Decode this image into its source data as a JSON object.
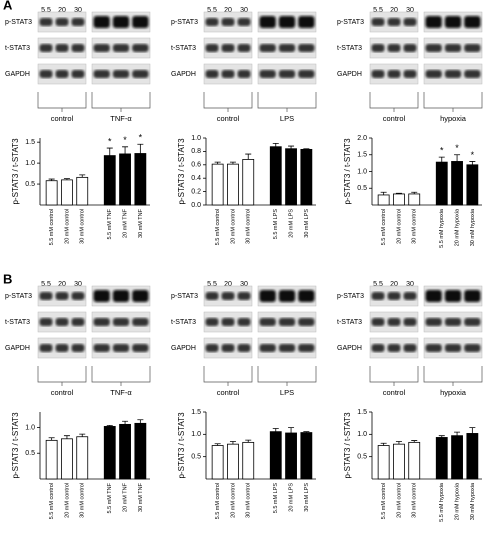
{
  "panel_labels": [
    "A",
    "B"
  ],
  "blots": [
    {
      "lanes": [
        "5.5",
        "20",
        "30"
      ],
      "rows": [
        "p-STAT3",
        "t-STAT3",
        "GAPDH"
      ],
      "groups": [
        "control",
        "TNF-α"
      ]
    },
    {
      "lanes": [
        "5.5",
        "20",
        "30"
      ],
      "rows": [
        "p-STAT3",
        "t-STAT3",
        "GAPDH"
      ],
      "groups": [
        "control",
        "LPS"
      ]
    },
    {
      "lanes": [
        "5.5",
        "20",
        "30"
      ],
      "rows": [
        "p-STAT3",
        "t-STAT3",
        "GAPDH"
      ],
      "groups": [
        "control",
        "hypoxia"
      ]
    },
    {
      "lanes": [
        "5.5",
        "20",
        "30"
      ],
      "rows": [
        "p-STAT3",
        "t-STAT3",
        "GAPDH"
      ],
      "groups": [
        "control",
        "TNF-α"
      ]
    },
    {
      "lanes": [
        "5.5",
        "20",
        "30"
      ],
      "rows": [
        "p-STAT3",
        "t-STAT3",
        "GAPDH"
      ],
      "groups": [
        "control",
        "LPS"
      ]
    },
    {
      "lanes": [
        "5.5",
        "20",
        "30"
      ],
      "rows": [
        "p-STAT3",
        "t-STAT3",
        "GAPDH"
      ],
      "groups": [
        "control",
        "hypoxia"
      ]
    }
  ],
  "chart_data": [
    {
      "type": "bar",
      "ylabel": "p-STAT3 / t-STAT3",
      "categories": [
        "5.5 mM control",
        "20 mM control",
        "30 mM control",
        "5.5 mM TNF",
        "20 mM TNF",
        "30 mM TNF"
      ],
      "values": [
        0.58,
        0.6,
        0.66,
        1.18,
        1.22,
        1.23
      ],
      "errors": [
        0.04,
        0.03,
        0.06,
        0.18,
        0.17,
        0.22
      ],
      "colors": [
        "#ffffff",
        "#ffffff",
        "#ffffff",
        "#000000",
        "#000000",
        "#000000"
      ],
      "significance": [
        null,
        null,
        null,
        "*",
        "*",
        "*"
      ],
      "ylim": [
        0,
        1.6
      ],
      "yticks": [
        0.5,
        {
          "value": 1,
          "label": "1.0"
        },
        1.5
      ]
    },
    {
      "type": "bar",
      "ylabel": "p-STAT3 / t-STAT3",
      "categories": [
        "5.5 mM control",
        "20 mM control",
        "30 mM control",
        "5.5 mM LPS",
        "20 mM LPS",
        "30 mM LPS"
      ],
      "values": [
        0.61,
        0.61,
        0.68,
        0.87,
        0.84,
        0.83
      ],
      "errors": [
        0.03,
        0.03,
        0.08,
        0.05,
        0.04,
        0.01
      ],
      "colors": [
        "#ffffff",
        "#ffffff",
        "#ffffff",
        "#000000",
        "#000000",
        "#000000"
      ],
      "ylim": [
        0,
        1
      ],
      "yticks": [
        {
          "value": 0,
          "label": "0.0"
        },
        0.2,
        0.4,
        0.6,
        0.8,
        {
          "value": 1,
          "label": "1.0"
        }
      ]
    },
    {
      "type": "bar",
      "ylabel": "p-STAT3 / t-STAT3",
      "categories": [
        "5.5 mM control",
        "20 mM control",
        "30 mM control",
        "5.5 mM hypoxia",
        "20 mM hypoxia",
        "30 mM hypoxia"
      ],
      "values": [
        0.3,
        0.33,
        0.33,
        1.28,
        1.3,
        1.2
      ],
      "errors": [
        0.08,
        0.02,
        0.05,
        0.15,
        0.2,
        0.1
      ],
      "colors": [
        "#ffffff",
        "#ffffff",
        "#ffffff",
        "#000000",
        "#000000",
        "#000000"
      ],
      "significance": [
        null,
        null,
        null,
        "*",
        "*",
        "*"
      ],
      "ylim": [
        0,
        2
      ],
      "yticks": [
        0.5,
        {
          "value": 1,
          "label": "1.0"
        },
        1.5,
        {
          "value": 2,
          "label": "2.0"
        }
      ]
    },
    {
      "type": "bar",
      "ylabel": "p-STAT3 / t-STAT3",
      "categories": [
        "5.5 mM control",
        "20 mM control",
        "30 mM control",
        "5.5 mM TNF",
        "20 mM TNF",
        "30 mM TNF"
      ],
      "values": [
        0.75,
        0.78,
        0.82,
        1.02,
        1.06,
        1.08
      ],
      "errors": [
        0.05,
        0.06,
        0.05,
        0.02,
        0.06,
        0.07
      ],
      "colors": [
        "#ffffff",
        "#ffffff",
        "#ffffff",
        "#000000",
        "#000000",
        "#000000"
      ],
      "ylim": [
        0,
        1.3
      ],
      "yticks": [
        0.5,
        {
          "value": 1,
          "label": "1.0"
        }
      ]
    },
    {
      "type": "bar",
      "ylabel": "p-STAT3 / t-STAT3",
      "categories": [
        "5.5 mM control",
        "20 mM control",
        "30 mM control",
        "5.5 mM LPS",
        "20 mM LPS",
        "30 mM LPS"
      ],
      "values": [
        0.75,
        0.78,
        0.82,
        1.06,
        1.03,
        1.04
      ],
      "errors": [
        0.04,
        0.06,
        0.05,
        0.07,
        0.12,
        0.02
      ],
      "colors": [
        "#ffffff",
        "#ffffff",
        "#ffffff",
        "#000000",
        "#000000",
        "#000000"
      ],
      "ylim": [
        0,
        1.5
      ],
      "yticks": [
        0.5,
        {
          "value": 1,
          "label": "1.0"
        },
        1.5
      ]
    },
    {
      "type": "bar",
      "ylabel": "p-STAT3 / t-STAT3",
      "categories": [
        "5.5 mM control",
        "20 mM control",
        "30 mM control",
        "5.5 mM hypoxia",
        "20 mM hypoxia",
        "30 mM hypoxia"
      ],
      "values": [
        0.75,
        0.78,
        0.82,
        0.93,
        0.97,
        1.02
      ],
      "errors": [
        0.05,
        0.06,
        0.04,
        0.04,
        0.08,
        0.13
      ],
      "colors": [
        "#ffffff",
        "#ffffff",
        "#ffffff",
        "#000000",
        "#000000",
        "#000000"
      ],
      "ylim": [
        0,
        1.5
      ],
      "yticks": [
        0.5,
        {
          "value": 1,
          "label": "1.0"
        },
        1.5
      ]
    }
  ]
}
